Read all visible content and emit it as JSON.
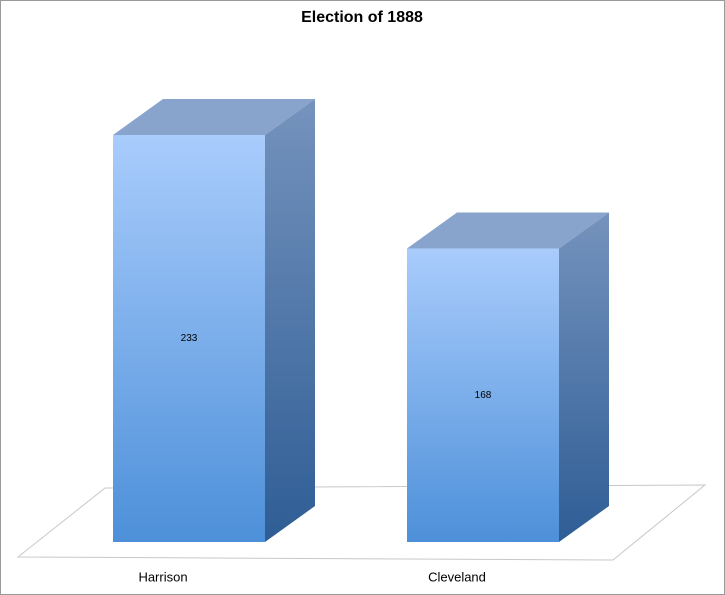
{
  "chart_data": {
    "type": "bar3d",
    "title": "Election of 1888",
    "categories": [
      "Harrison",
      "Cleveland"
    ],
    "values": [
      233,
      168
    ],
    "color": "#6fa6ea"
  }
}
